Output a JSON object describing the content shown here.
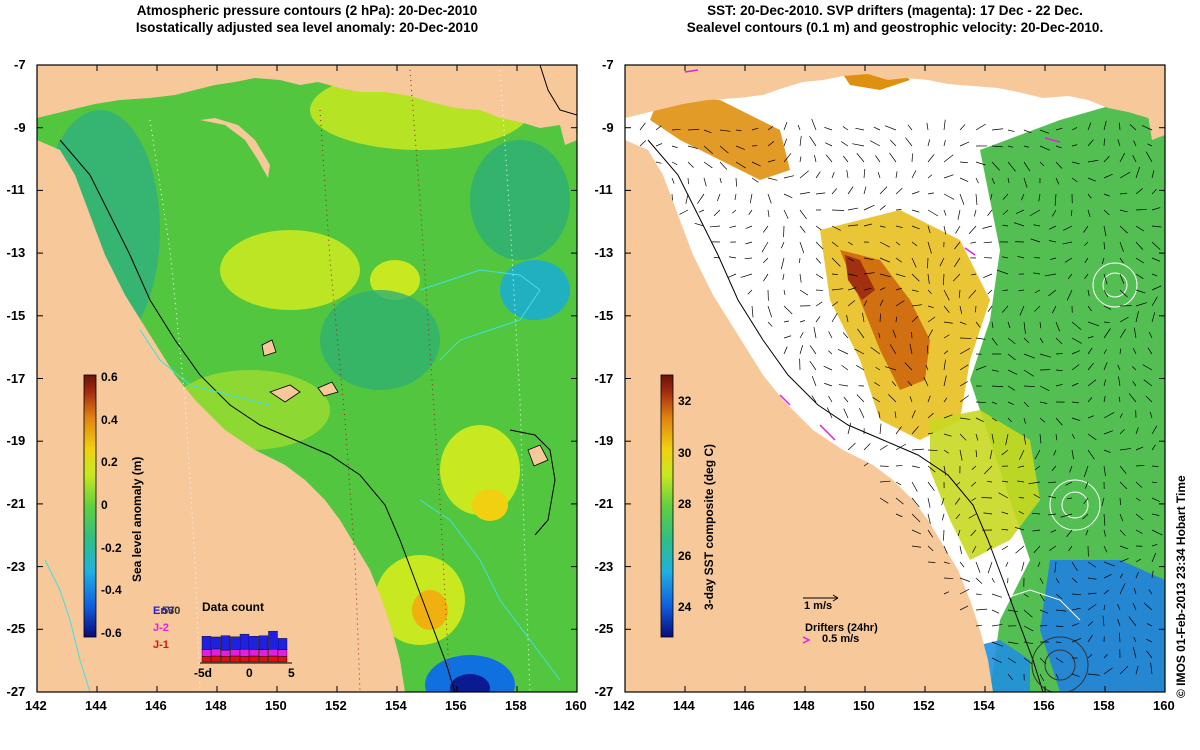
{
  "left_panel": {
    "title_line1": "Atmospheric pressure contours (2 hPa): 20-Dec-2010",
    "title_line2": "Isostatically adjusted sea level anomaly: 20-Dec-2010",
    "colorbar": {
      "label": "Sea level anomaly (m)",
      "ticks": [
        "0.6",
        "0.4",
        "0.2",
        "0",
        "-0.2",
        "-0.4",
        "-0.6"
      ],
      "colormap": [
        "#0a0a78",
        "#1060e0",
        "#20b0e0",
        "#30c080",
        "#60d040",
        "#c8e820",
        "#f0d010",
        "#e08010",
        "#a02810",
        "#6a1408"
      ]
    },
    "data_count": {
      "title": "Data count",
      "legend": [
        {
          "label": "EnV",
          "color": "#2020e0"
        },
        {
          "label": "J-2",
          "color": "#e020e0"
        },
        {
          "label": "J-1",
          "color": "#e01010"
        }
      ],
      "overlap_label": "530",
      "x_ticks": [
        "-5d",
        "0",
        "5"
      ],
      "bars_envisat": [
        0.45,
        0.4,
        0.48,
        0.42,
        0.5,
        0.44,
        0.47,
        0.6,
        0.38
      ],
      "bars_jason2": [
        0.3,
        0.32,
        0.28,
        0.3,
        0.33,
        0.3,
        0.29,
        0.31,
        0.3
      ],
      "bars_jason1": [
        0.28,
        0.3,
        0.29,
        0.3,
        0.28,
        0.3,
        0.29,
        0.3,
        0.28
      ]
    }
  },
  "right_panel": {
    "title_line1": "SST: 20-Dec-2010. SVP drifters (magenta): 17 Dec - 22 Dec.",
    "title_line2": "Sealevel contours (0.1 m) and geostrophic velocity: 20-Dec-2010.",
    "colorbar": {
      "label": "3-day SST composite (deg C)",
      "ticks": [
        "32",
        "30",
        "28",
        "26",
        "24"
      ],
      "colormap": [
        "#0a0a78",
        "#1060e0",
        "#20b0e0",
        "#30c080",
        "#60d040",
        "#c8e820",
        "#f0d010",
        "#e08010",
        "#a02810",
        "#6a1408"
      ]
    },
    "velocity_legend": "1 m/s",
    "drifter_legend_title": "Drifters (24hr)",
    "drifter_legend_scale": "0.5 m/s"
  },
  "axes": {
    "lat_ticks": [
      "-7",
      "-9",
      "-11",
      "-13",
      "-15",
      "-17",
      "-19",
      "-21",
      "-23",
      "-25",
      "-27"
    ],
    "lon_ticks": [
      "142",
      "144",
      "146",
      "148",
      "150",
      "152",
      "154",
      "156",
      "158",
      "160"
    ]
  },
  "credit": "© IMOS 01-Feb-2013 23:34 Hobart Time",
  "colors": {
    "land": "#f6c89a",
    "ocean_green": "#3fbf48",
    "shelf_cyan": "#40e0e0",
    "drifter_magenta": "#e020e0"
  }
}
